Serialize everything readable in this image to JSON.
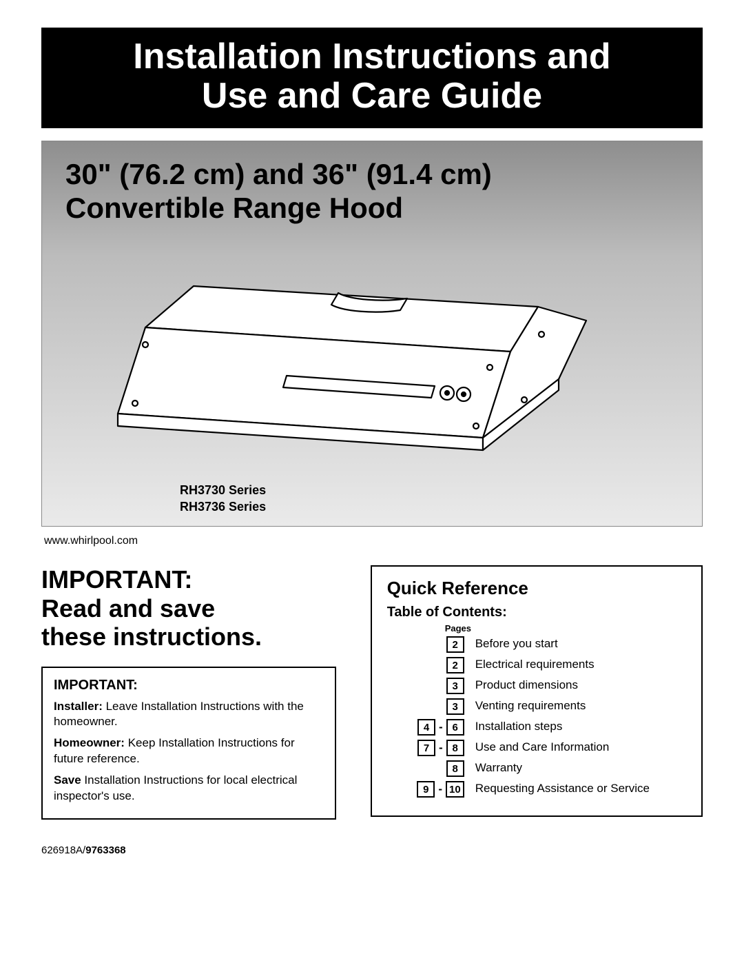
{
  "banner": {
    "line1": "Installation Instructions and",
    "line2": "Use and Care Guide"
  },
  "hero": {
    "title_line1": "30\" (76.2 cm) and 36\" (91.4 cm)",
    "title_line2": "Convertible Range Hood",
    "model1": "RH3730 Series",
    "model2": "RH3736 Series",
    "bg_gradient_top": "#8e8e8e",
    "bg_gradient_bottom": "#eaeaea",
    "illustration": {
      "stroke": "#000000",
      "stroke_width": 2,
      "fill": "#ffffff"
    }
  },
  "website": "www.whirlpool.com",
  "headline": {
    "l1": "IMPORTANT:",
    "l2": "Read and save",
    "l3": "these instructions."
  },
  "important_box": {
    "label": "IMPORTANT:",
    "p1_bold": "Installer:",
    "p1_rest": " Leave Installation Instructions with the homeowner.",
    "p2_bold": "Homeowner:",
    "p2_rest": " Keep Installation Instructions for future reference.",
    "p3_bold": "Save",
    "p3_rest": " Installation Instructions for local electrical inspector's use."
  },
  "quickref": {
    "title": "Quick Reference",
    "subtitle": "Table of Contents:",
    "pages_label": "Pages",
    "items": [
      {
        "from": "2",
        "to": null,
        "text": "Before you start"
      },
      {
        "from": "2",
        "to": null,
        "text": "Electrical requirements"
      },
      {
        "from": "3",
        "to": null,
        "text": "Product dimensions"
      },
      {
        "from": "3",
        "to": null,
        "text": "Venting requirements"
      },
      {
        "from": "4",
        "to": "6",
        "text": "Installation steps"
      },
      {
        "from": "7",
        "to": "8",
        "text": "Use and Care Information"
      },
      {
        "from": "8",
        "to": null,
        "text": "Warranty"
      },
      {
        "from": "9",
        "to": "10",
        "text": "Requesting Assistance or Service"
      }
    ]
  },
  "docnum": {
    "plain": "626918A/",
    "bold": "9763368"
  }
}
